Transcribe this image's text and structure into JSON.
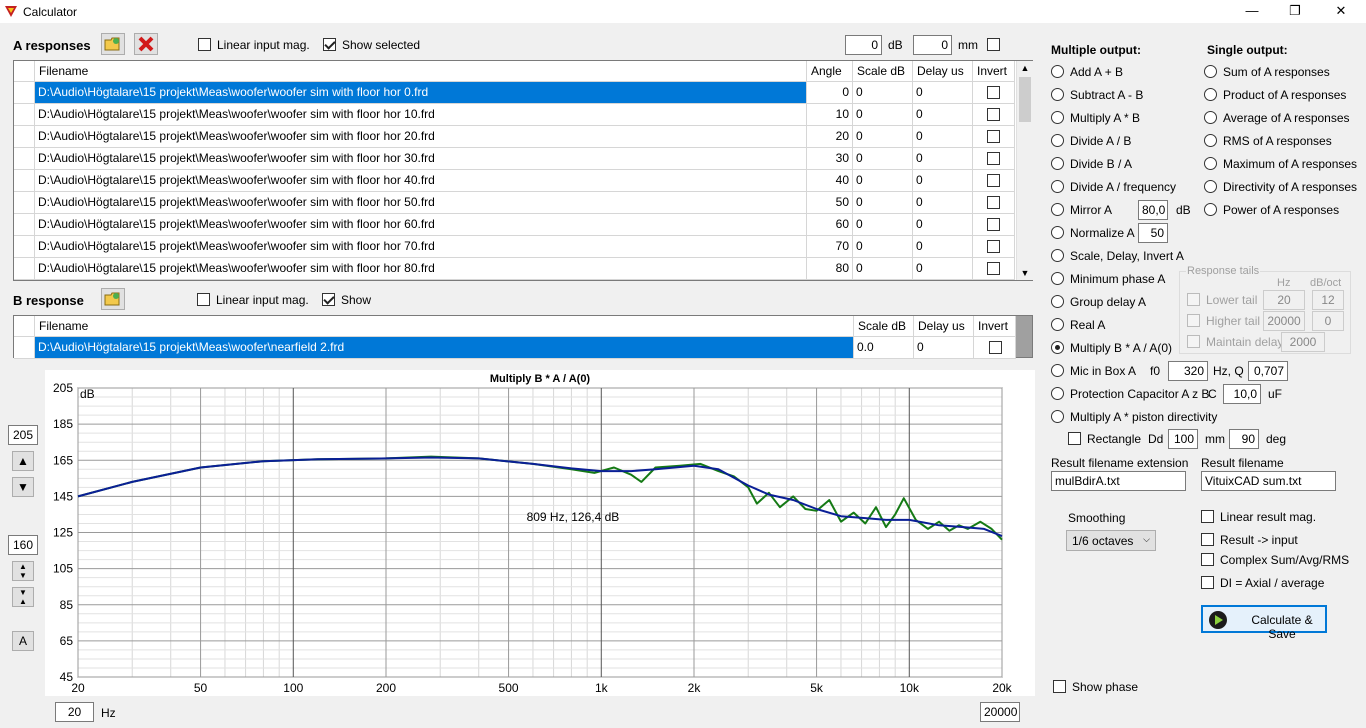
{
  "window": {
    "title": "Calculator",
    "min": "—",
    "max": "❐",
    "close": "✕"
  },
  "a_responses": {
    "label": "A responses",
    "linear_input": "Linear input mag.",
    "show_selected": "Show selected",
    "db_val": "0",
    "db_unit": "dB",
    "mm_val": "0",
    "mm_unit": "mm",
    "headers": [
      "Filename",
      "Angle",
      "Scale dB",
      "Delay us",
      "Invert"
    ],
    "rows": [
      [
        "D:\\Audio\\Högtalare\\15 projekt\\Meas\\woofer\\woofer sim with floor hor 0.frd",
        "0",
        "0",
        "0"
      ],
      [
        "D:\\Audio\\Högtalare\\15 projekt\\Meas\\woofer\\woofer sim with floor hor 10.frd",
        "10",
        "0",
        "0"
      ],
      [
        "D:\\Audio\\Högtalare\\15 projekt\\Meas\\woofer\\woofer sim with floor hor 20.frd",
        "20",
        "0",
        "0"
      ],
      [
        "D:\\Audio\\Högtalare\\15 projekt\\Meas\\woofer\\woofer sim with floor hor 30.frd",
        "30",
        "0",
        "0"
      ],
      [
        "D:\\Audio\\Högtalare\\15 projekt\\Meas\\woofer\\woofer sim with floor hor 40.frd",
        "40",
        "0",
        "0"
      ],
      [
        "D:\\Audio\\Högtalare\\15 projekt\\Meas\\woofer\\woofer sim with floor hor 50.frd",
        "50",
        "0",
        "0"
      ],
      [
        "D:\\Audio\\Högtalare\\15 projekt\\Meas\\woofer\\woofer sim with floor hor 60.frd",
        "60",
        "0",
        "0"
      ],
      [
        "D:\\Audio\\Högtalare\\15 projekt\\Meas\\woofer\\woofer sim with floor hor 70.frd",
        "70",
        "0",
        "0"
      ],
      [
        "D:\\Audio\\Högtalare\\15 projekt\\Meas\\woofer\\woofer sim with floor hor 80.frd",
        "80",
        "0",
        "0"
      ]
    ]
  },
  "b_response": {
    "label": "B response",
    "linear_input": "Linear input mag.",
    "show": "Show",
    "headers": [
      "Filename",
      "Scale dB",
      "Delay us",
      "Invert"
    ],
    "row": [
      "D:\\Audio\\Högtalare\\15 projekt\\Meas\\woofer\\nearfield 2.frd",
      "0.0",
      "0"
    ]
  },
  "multiple_output": {
    "title": "Multiple output:",
    "options": [
      "Add A + B",
      "Subtract A - B",
      "Multiply A * B",
      "Divide A / B",
      "Divide B / A",
      "Divide A / frequency",
      "Mirror A",
      "Normalize A",
      "Scale, Delay, Invert A",
      "Minimum phase A",
      "Group delay A",
      "Real A",
      "Multiply B * A / A(0)",
      "Mic in Box A",
      "Protection Capacitor A z B",
      "Multiply A * piston directivity"
    ],
    "selected": "Multiply B * A / A(0)",
    "mirror_val": "80,0",
    "mirror_unit": "dB",
    "normalize_val": "50",
    "mic_f0": "f0",
    "mic_f0_val": "320",
    "mic_q": "Hz, Q",
    "mic_q_val": "0,707",
    "cap_c": "C",
    "cap_val": "10,0",
    "cap_unit": "uF",
    "rectangle": "Rectangle",
    "dd": "Dd",
    "dd_val": "100",
    "dd_unit": "mm",
    "deg_val": "90",
    "deg_unit": "deg"
  },
  "single_output": {
    "title": "Single output:",
    "options": [
      "Sum of A responses",
      "Product of A responses",
      "Average of A responses",
      "RMS of A responses",
      "Maximum of A responses",
      "Directivity of A responses",
      "Power of A responses"
    ]
  },
  "response_tails": {
    "title": "Response tails",
    "hz": "Hz",
    "dboct": "dB/oct",
    "lower": "Lower tail",
    "lower_hz": "20",
    "lower_db": "12",
    "higher": "Higher tail",
    "higher_hz": "20000",
    "higher_db": "0",
    "maintain": "Maintain delay",
    "maintain_val": "2000"
  },
  "result": {
    "ext_label": "Result filename extension",
    "ext_val": "mulBdirA.txt",
    "name_label": "Result filename",
    "name_val": "VituixCAD sum.txt"
  },
  "smoothing": {
    "label": "Smoothing",
    "value": "1/6 octaves"
  },
  "options": {
    "linear_result": "Linear result mag.",
    "result_input": "Result -> input",
    "complex": "Complex Sum/Avg/RMS",
    "di": "DI = Axial / average",
    "show_phase": "Show phase"
  },
  "calc_button": "Calculate & Save",
  "chart_controls": {
    "ymax": "205",
    "yrange": "160",
    "a_btn": "A",
    "xmin": "20",
    "hz": "Hz",
    "xmax": "20000"
  },
  "colors": {
    "blue": "#0a1f96",
    "green": "#157a15",
    "selection": "#0078d7"
  },
  "chart_data": {
    "type": "line",
    "title": "Multiply B * A / A(0)",
    "ylabel": "dB",
    "xlabel": "",
    "xscale": "log",
    "xlim": [
      20,
      20000
    ],
    "ylim": [
      45,
      205
    ],
    "yticks": [
      205,
      185,
      165,
      145,
      125,
      105,
      85,
      65,
      45
    ],
    "xticks": [
      {
        "v": 20,
        "l": "20"
      },
      {
        "v": 50,
        "l": "50"
      },
      {
        "v": 100,
        "l": "100"
      },
      {
        "v": 200,
        "l": "200"
      },
      {
        "v": 500,
        "l": "500"
      },
      {
        "v": 1000,
        "l": "1k"
      },
      {
        "v": 2000,
        "l": "2k"
      },
      {
        "v": 5000,
        "l": "5k"
      },
      {
        "v": 10000,
        "l": "10k"
      },
      {
        "v": 20000,
        "l": "20k"
      }
    ],
    "annotation": "809 Hz, 126,4 dB",
    "series": [
      {
        "color": "#157a15",
        "points": [
          [
            20,
            145
          ],
          [
            30,
            153
          ],
          [
            50,
            161
          ],
          [
            80,
            164.5
          ],
          [
            120,
            165.5
          ],
          [
            200,
            166
          ],
          [
            280,
            167
          ],
          [
            400,
            166
          ],
          [
            600,
            163
          ],
          [
            800,
            160
          ],
          [
            950,
            158
          ],
          [
            1100,
            161
          ],
          [
            1250,
            157
          ],
          [
            1350,
            153
          ],
          [
            1500,
            161
          ],
          [
            1800,
            162
          ],
          [
            2100,
            163
          ],
          [
            2400,
            159
          ],
          [
            2700,
            156
          ],
          [
            3000,
            150
          ],
          [
            3200,
            141
          ],
          [
            3500,
            147
          ],
          [
            3800,
            139
          ],
          [
            4200,
            145
          ],
          [
            4600,
            138
          ],
          [
            5000,
            137
          ],
          [
            5500,
            143
          ],
          [
            6000,
            131
          ],
          [
            6600,
            136
          ],
          [
            7200,
            130
          ],
          [
            7800,
            139
          ],
          [
            8400,
            128
          ],
          [
            9000,
            135
          ],
          [
            9600,
            144
          ],
          [
            10500,
            132
          ],
          [
            11500,
            127
          ],
          [
            12500,
            131
          ],
          [
            13500,
            126
          ],
          [
            14500,
            129
          ],
          [
            15500,
            127
          ],
          [
            17000,
            131
          ],
          [
            18500,
            127
          ],
          [
            20000,
            121
          ]
        ]
      },
      {
        "color": "#0a1f96",
        "points": [
          [
            20,
            145
          ],
          [
            30,
            153
          ],
          [
            50,
            161
          ],
          [
            80,
            164.5
          ],
          [
            120,
            165.5
          ],
          [
            200,
            166
          ],
          [
            280,
            166.5
          ],
          [
            400,
            166
          ],
          [
            600,
            163
          ],
          [
            800,
            160.5
          ],
          [
            1000,
            159
          ],
          [
            1250,
            159
          ],
          [
            1500,
            160
          ],
          [
            2000,
            162
          ],
          [
            2400,
            160
          ],
          [
            3000,
            151
          ],
          [
            3500,
            146
          ],
          [
            4200,
            143
          ],
          [
            5000,
            138
          ],
          [
            6000,
            134
          ],
          [
            7200,
            133
          ],
          [
            8400,
            132
          ],
          [
            10000,
            132
          ],
          [
            12500,
            129
          ],
          [
            15000,
            128
          ],
          [
            17500,
            127
          ],
          [
            20000,
            123
          ]
        ]
      }
    ]
  }
}
